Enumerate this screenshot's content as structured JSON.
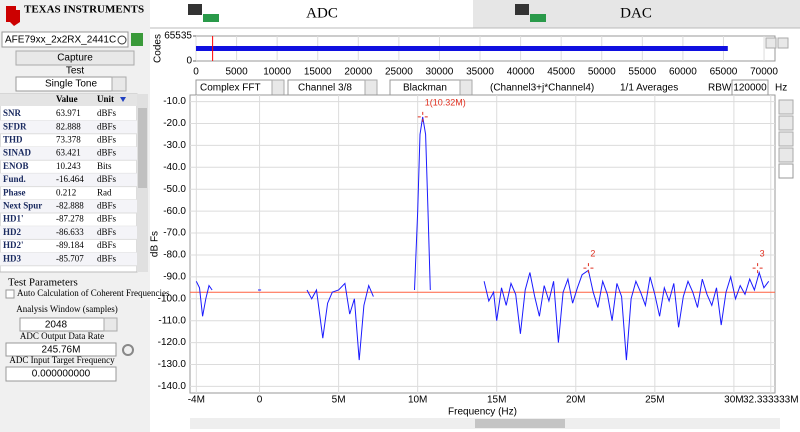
{
  "header": {
    "logo": "TEXAS INSTRUMENTS"
  },
  "tabs": [
    "ADC",
    "DAC"
  ],
  "sidebar": {
    "device": "AFE79xx_2x2RX_2441C",
    "capture": "Capture",
    "test_label": "Test",
    "test": "Single Tone",
    "table": {
      "columns": [
        "Value",
        "Unit"
      ],
      "rows": [
        [
          "SNR",
          63.971,
          "dBFs"
        ],
        [
          "SFDR",
          82.888,
          "dBFs"
        ],
        [
          "THD",
          73.378,
          "dBFs"
        ],
        [
          "SINAD",
          63.421,
          "dBFs"
        ],
        [
          "ENOB",
          10.243,
          "Bits"
        ],
        [
          "Fund.",
          -16.464,
          "dBFs"
        ],
        [
          "Phase",
          0.212,
          "Rad"
        ],
        [
          "Next Spur",
          -82.888,
          "dBFs"
        ],
        [
          "HD1'",
          -87.278,
          "dBFs"
        ],
        [
          "HD2",
          -86.633,
          "dBFs"
        ],
        [
          "HD2'",
          -89.184,
          "dBFs"
        ],
        [
          "HD3",
          -85.707,
          "dBFs"
        ]
      ]
    },
    "params": {
      "title": "Test Parameters",
      "auto": "Auto Calculation of Coherent Frequencies",
      "window_label": "Analysis Window (samples)",
      "window": "2048",
      "rate_label": "ADC Output Data Rate",
      "rate": "245.76M",
      "target_label": "ADC Input Target Frequency",
      "target": "0.000000000"
    }
  },
  "capture_chart": {
    "ylabel": "Codes",
    "xlim": [
      0,
      71350
    ],
    "ylim": [
      0,
      65535
    ],
    "yticks": [
      0,
      65535
    ],
    "xticks": [
      0,
      5000,
      10000,
      15000,
      20000,
      25000,
      30000,
      35000,
      40000,
      45000,
      50000,
      55000,
      60000,
      65000,
      70000
    ],
    "band": {
      "start": 0,
      "end": 65535,
      "color": "#1010e0"
    },
    "cursor": {
      "value": 2048,
      "color": "#ff0000"
    }
  },
  "controls": {
    "mode": "Complex FFT",
    "channel": "Channel 3/8",
    "window": "Blackman",
    "signal": "(Channel3+j*Channel4)",
    "averages": "1/1 Averages",
    "rbw_label": "RBW",
    "rbw": "120000",
    "rbw_unit": "Hz"
  },
  "chart_data": {
    "type": "line",
    "xlabel": "Frequency (Hz)",
    "ylabel": "dB Fs",
    "grid": true,
    "xlim": [
      -4400000,
      32600000
    ],
    "ylim": [
      -143,
      -7
    ],
    "xticks": [
      {
        "value": -4000000,
        "label": "-4M"
      },
      0,
      {
        "value": 5000000,
        "label": "5M"
      },
      {
        "value": 10000000,
        "label": "10M"
      },
      {
        "value": 15000000,
        "label": "15M"
      },
      {
        "value": 20000000,
        "label": "20M"
      },
      {
        "value": 25000000,
        "label": "25M"
      },
      {
        "value": 30000000,
        "label": "30M"
      },
      {
        "value": 32333333,
        "label": "32.333333M"
      }
    ],
    "yticks": [
      {
        "value": -140,
        "label": "-140.0"
      },
      {
        "value": -130,
        "label": "-130.0"
      },
      {
        "value": -120,
        "label": "-120.0"
      },
      {
        "value": -110,
        "label": "-110.0"
      },
      {
        "value": -100,
        "label": "-100.0"
      },
      {
        "value": -90,
        "label": "-90.0"
      },
      {
        "value": -80,
        "label": "-80.0"
      },
      {
        "value": -70,
        "label": "-70.0"
      },
      {
        "value": -60,
        "label": "-60.0"
      },
      {
        "value": -50,
        "label": "-50.0"
      },
      {
        "value": -40,
        "label": "-40.0"
      },
      {
        "value": -30,
        "label": "-30.0"
      },
      {
        "value": -20,
        "label": "-20.0"
      },
      {
        "value": -10,
        "label": "-10.0"
      }
    ],
    "x": [
      -4000000,
      -3800000,
      -3600000,
      -3400000,
      -3200000,
      -3000000,
      null,
      -100000,
      100000,
      null,
      3000000,
      3300000,
      3600000,
      4000000,
      4300000,
      4600000,
      5000000,
      5400000,
      5700000,
      6000000,
      6300000,
      6600000,
      6900000,
      7200000,
      null,
      9800000,
      10000000,
      10150000,
      10320000,
      10500000,
      10650000,
      10800000,
      null,
      14200000,
      14500000,
      14800000,
      15000000,
      15300000,
      15600000,
      15900000,
      16200000,
      16500000,
      16800000,
      17100000,
      17400000,
      17700000,
      18000000,
      18300000,
      18600000,
      18900000,
      19200000,
      19500000,
      19800000,
      20100000,
      20400000,
      20800000,
      21100000,
      21400000,
      21700000,
      22000000,
      22300000,
      22600000,
      22900000,
      23200000,
      23500000,
      23800000,
      24100000,
      24400000,
      24700000,
      25000000,
      25300000,
      25600000,
      25900000,
      26200000,
      26500000,
      26800000,
      27100000,
      27400000,
      27700000,
      28000000,
      28300000,
      28600000,
      28900000,
      29200000,
      29500000,
      29800000,
      30100000,
      30400000,
      30700000,
      31000000,
      31300000,
      31600000,
      31900000,
      32200000
    ],
    "series": [
      {
        "color": "#1a1aff",
        "values": [
          -92,
          -95,
          -108,
          -100,
          -94,
          -96,
          null,
          -96,
          -96,
          null,
          -96,
          -100,
          -96,
          -118,
          -102,
          -97,
          -96,
          -93,
          -107,
          -100,
          -128,
          -103,
          -94,
          -99,
          null,
          -96,
          -60,
          -25,
          -17,
          -25,
          -60,
          -96,
          null,
          -92,
          -101,
          -97,
          -110,
          -95,
          -103,
          -93,
          -98,
          -116,
          -96,
          -88,
          -99,
          -108,
          -94,
          -101,
          -92,
          -120,
          -97,
          -91,
          -102,
          -95,
          -89,
          -87,
          -97,
          -104,
          -92,
          -98,
          -110,
          -93,
          -99,
          -128,
          -100,
          -92,
          -97,
          -103,
          -90,
          -98,
          -108,
          -95,
          -101,
          -93,
          -113,
          -99,
          -92,
          -97,
          -104,
          -91,
          -98,
          -103,
          -95,
          -112,
          -97,
          -90,
          -100,
          -94,
          -98,
          -91,
          -96,
          -88,
          -95,
          -92
        ]
      }
    ],
    "reference_line": {
      "value": -97,
      "color": "#ff6040"
    },
    "markers": [
      {
        "label": "1(10.32M)",
        "x": 10320000,
        "y": -17
      },
      {
        "label": "2",
        "x": 20800000,
        "y": -86
      },
      {
        "label": "3",
        "x": 31500000,
        "y": -86
      }
    ],
    "marker_color": "#e03020"
  }
}
